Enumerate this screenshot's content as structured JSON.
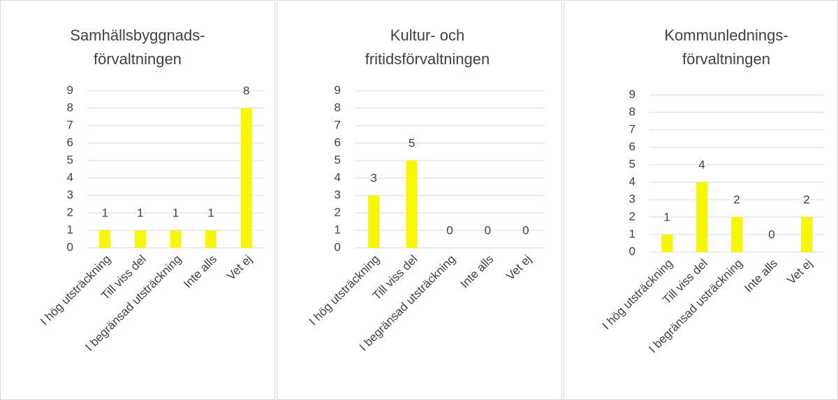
{
  "chart_data": [
    {
      "type": "bar",
      "title": [
        "Samhällsbyggnads-",
        "förvaltningen"
      ],
      "categories": [
        "I hög utsträckning",
        "Till viss del",
        "I begränsad utsträckning",
        "Inte alls",
        "Vet ej"
      ],
      "values": [
        1,
        1,
        1,
        1,
        8
      ],
      "color": "#f7f700",
      "ylim": [
        0,
        9
      ],
      "yticks": [
        0,
        1,
        2,
        3,
        4,
        5,
        6,
        7,
        8,
        9
      ],
      "grid": true
    },
    {
      "type": "bar",
      "title": [
        "Kultur- och",
        "fritidsförvaltningen"
      ],
      "categories": [
        "I hög utsträckning",
        "Till viss del",
        "I begränsad utsträckning",
        "Inte alls",
        "Vet ej"
      ],
      "values": [
        3,
        5,
        0,
        0,
        0
      ],
      "color": "#f7f700",
      "ylim": [
        0,
        9
      ],
      "yticks": [
        0,
        1,
        2,
        3,
        4,
        5,
        6,
        7,
        8,
        9
      ],
      "grid": true
    },
    {
      "type": "bar",
      "title": [
        "Kommunlednings-",
        "förvaltningen"
      ],
      "categories": [
        "I hög utsträckning",
        "Till viss del",
        "I begränsad usträckning",
        "Inte alls",
        "Vet ej"
      ],
      "values": [
        1,
        4,
        2,
        0,
        2
      ],
      "color": "#f7f700",
      "ylim": [
        0,
        9
      ],
      "yticks": [
        0,
        1,
        2,
        3,
        4,
        5,
        6,
        7,
        8,
        9
      ],
      "grid": true
    }
  ]
}
